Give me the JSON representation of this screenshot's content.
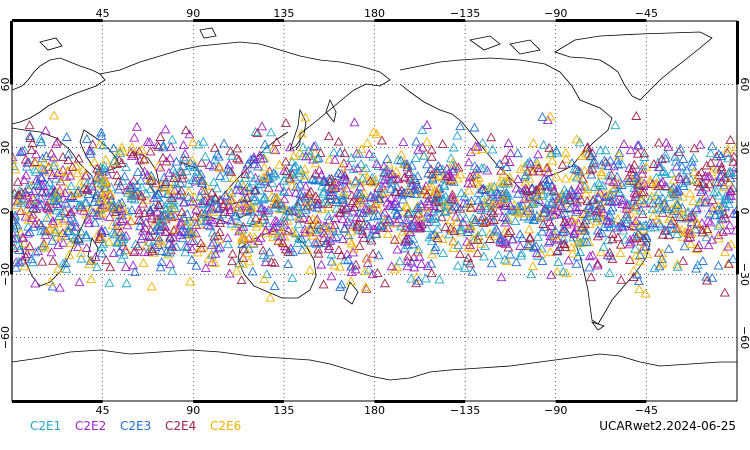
{
  "map": {
    "lon_labels": [
      "45",
      "90",
      "135",
      "180",
      "−135",
      "−90",
      "−45"
    ],
    "lat_labels": [
      "60",
      "30",
      "0",
      "−30",
      "−60"
    ],
    "lon_values": [
      45,
      90,
      135,
      180,
      -135,
      -90,
      -45
    ],
    "lat_values": [
      60,
      30,
      0,
      -30,
      -60
    ],
    "grid": true,
    "gridline_style": "dotted",
    "lon_range": [
      0,
      360
    ],
    "lat_range": [
      -90,
      90
    ],
    "marker_shape": "open-triangle",
    "observation_lat_band": [
      -45,
      50
    ]
  },
  "legend": {
    "items": [
      {
        "label": "C2E1",
        "color": "#22a7c9"
      },
      {
        "label": "C2E2",
        "color": "#a020c8"
      },
      {
        "label": "C2E3",
        "color": "#1e6fd6"
      },
      {
        "label": "C2E4",
        "color": "#a0224a"
      },
      {
        "label": "C2E6",
        "color": "#f0b400"
      }
    ]
  },
  "caption": "UCARwet2.2024-06-25"
}
